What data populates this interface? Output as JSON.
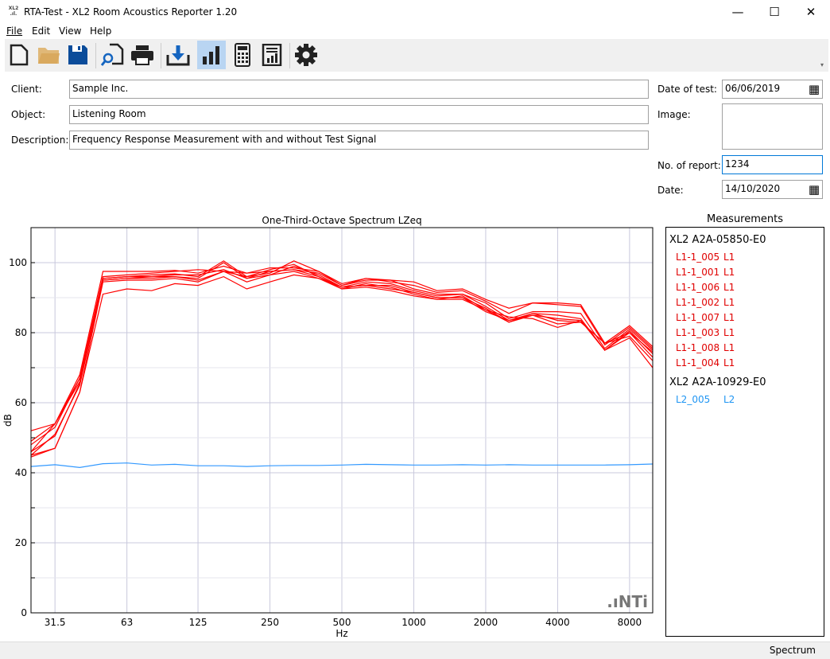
{
  "window": {
    "title": "RTA-Test - XL2 Room Acoustics Reporter 1.20",
    "logo_text": "XL2",
    "minimize": "—",
    "maximize": "☐",
    "close": "✕"
  },
  "menu": [
    "File",
    "Edit",
    "View",
    "Help"
  ],
  "toolbar": [
    {
      "icon": "new-file-icon"
    },
    {
      "icon": "open-folder-icon"
    },
    {
      "icon": "save-icon"
    },
    {
      "icon": "print-preview-icon"
    },
    {
      "icon": "print-icon"
    },
    {
      "icon": "download-icon"
    },
    {
      "icon": "spectrum-chart-icon",
      "active": true
    },
    {
      "icon": "calculator-icon"
    },
    {
      "icon": "report-icon"
    },
    {
      "icon": "settings-gear-icon"
    }
  ],
  "form": {
    "client_label": "Client:",
    "client": "Sample Inc.",
    "object_label": "Object:",
    "object": "Listening Room",
    "description_label": "Description:",
    "description": "Frequency Response Measurement with and without Test Signal",
    "date_of_test_label": "Date of test:",
    "date_of_test": "06/06/2019",
    "image_label": "Image:",
    "report_no_label": "No. of report:",
    "report_no": "1234",
    "date_label": "Date:",
    "date": "14/10/2020"
  },
  "chart_data": {
    "type": "line",
    "title": "One-Third-Octave Spectrum LZeq",
    "xlabel": "Hz",
    "ylabel": "dB",
    "ylim": [
      0,
      110
    ],
    "xscale": "log",
    "grid": true,
    "x": [
      25,
      31.5,
      40,
      50,
      63,
      80,
      100,
      125,
      160,
      200,
      250,
      315,
      400,
      500,
      630,
      800,
      1000,
      1250,
      1600,
      2000,
      2500,
      3150,
      4000,
      5000,
      6300,
      8000,
      10000
    ],
    "xticks": [
      "31.5",
      "63",
      "125",
      "250",
      "500",
      "1000",
      "2000",
      "4000",
      "8000"
    ],
    "yticks": [
      "0",
      "20",
      "40",
      "60",
      "80",
      "100"
    ],
    "series": [
      {
        "name": "L1-1_005",
        "color": "#ff0000",
        "values": [
          52,
          54,
          68,
          97.5,
          97.5,
          97.5,
          97.8,
          97,
          99,
          97,
          97.5,
          98,
          97,
          93.5,
          95.5,
          95,
          94.5,
          92,
          92.5,
          89.5,
          87,
          88.5,
          88.5,
          88,
          77,
          82,
          76
        ]
      },
      {
        "name": "L1-1_001",
        "color": "#ff0000",
        "values": [
          48,
          53,
          67,
          96,
          96.5,
          97,
          97.5,
          98,
          97.5,
          97,
          98.5,
          98.5,
          97.5,
          94,
          95.5,
          94.5,
          93.5,
          91.5,
          92,
          89,
          85.5,
          88.5,
          88,
          87.5,
          76.5,
          81.5,
          75.5
        ]
      },
      {
        "name": "L1-1_006",
        "color": "#ff0000",
        "values": [
          46,
          54,
          66,
          95.5,
          96,
          96.5,
          96.8,
          96,
          100.5,
          96,
          97,
          100.5,
          97.5,
          93.5,
          95,
          95,
          92.5,
          91,
          91,
          88.5,
          84,
          86,
          86,
          85.5,
          75.5,
          81,
          75
        ]
      },
      {
        "name": "L1-1_002",
        "color": "#ff0000",
        "values": [
          45,
          51,
          65,
          95,
          95.5,
          96,
          96,
          95.5,
          100,
          95.5,
          96.5,
          99,
          96.5,
          93,
          94.5,
          94,
          92,
          90.5,
          91,
          87.5,
          83.5,
          85.5,
          85,
          84,
          75,
          80,
          74.5
        ]
      },
      {
        "name": "L1-1_007",
        "color": "#ff0000",
        "values": [
          49,
          54,
          67,
          95.5,
          96,
          96,
          96.5,
          96.5,
          98,
          95.5,
          97.5,
          98,
          96,
          93,
          93.5,
          93.5,
          91.5,
          90,
          90,
          87,
          83,
          85,
          84,
          83.5,
          75,
          80.5,
          74
        ]
      },
      {
        "name": "L1-1_003",
        "color": "#ff0000",
        "values": [
          46,
          50.5,
          65.5,
          95,
          95.5,
          95.5,
          96,
          95,
          97.5,
          96,
          98,
          99.5,
          96,
          92.5,
          94,
          93,
          91,
          89.5,
          90.5,
          86.5,
          83,
          85.5,
          83.5,
          83,
          77,
          80,
          73
        ]
      },
      {
        "name": "L1-1_008",
        "color": "#ff0000",
        "values": [
          45,
          47,
          63,
          94.5,
          95,
          95,
          95.5,
          94.5,
          97.5,
          94.5,
          96.5,
          97.5,
          95.5,
          93,
          93.5,
          92.5,
          91.5,
          90,
          90,
          86,
          83.5,
          85,
          82.5,
          83,
          77,
          79,
          72
        ]
      },
      {
        "name": "L1-1_004",
        "color": "#ff0000",
        "values": [
          44.5,
          47,
          63,
          91,
          92.5,
          92,
          94,
          93.5,
          96,
          92.5,
          94.5,
          96.5,
          95.5,
          92.5,
          93,
          92,
          90.5,
          89.5,
          89.5,
          86.5,
          84.5,
          84,
          81.5,
          83.5,
          75,
          78.5,
          70
        ]
      },
      {
        "name": "L2_005",
        "color": "#3399ff",
        "values": [
          41.8,
          42.3,
          41.5,
          42.6,
          42.8,
          42.2,
          42.4,
          42,
          42,
          41.8,
          42,
          42.1,
          42.1,
          42.2,
          42.4,
          42.3,
          42.2,
          42.2,
          42.3,
          42.2,
          42.3,
          42.2,
          42.2,
          42.2,
          42.2,
          42.3,
          42.5
        ]
      }
    ]
  },
  "brand": ".ıNTi",
  "measurements": {
    "title": "Measurements",
    "groups": [
      {
        "device": "XL2 A2A-05850-E0",
        "color": "#e00000",
        "items": [
          [
            "L1-1_005",
            "L1"
          ],
          [
            "L1-1_001",
            "L1"
          ],
          [
            "L1-1_006",
            "L1"
          ],
          [
            "L1-1_002",
            "L1"
          ],
          [
            "L1-1_007",
            "L1"
          ],
          [
            "L1-1_003",
            "L1"
          ],
          [
            "L1-1_008",
            "L1"
          ],
          [
            "L1-1_004",
            "L1"
          ]
        ]
      },
      {
        "device": "XL2 A2A-10929-E0",
        "color": "#2196f3",
        "items": [
          [
            "L2_005",
            "L2"
          ]
        ]
      }
    ]
  },
  "status": "Spectrum"
}
